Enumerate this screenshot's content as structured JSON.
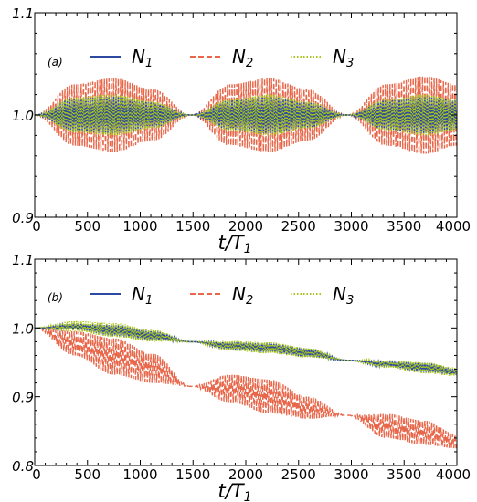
{
  "chart_data": [
    {
      "type": "line",
      "panel_label": "(a)",
      "xlabel": "t/T",
      "xlabel_sub": "1",
      "xlim": [
        0,
        4000
      ],
      "ylim": [
        0.9,
        1.1
      ],
      "x_ticks": [
        0,
        500,
        1000,
        1500,
        2000,
        2500,
        3000,
        3500,
        4000
      ],
      "y_ticks": [
        0.9,
        1.0,
        1.1
      ],
      "y_tick_labels": [
        "0.9",
        "1.0",
        "1.1"
      ],
      "legend_placement": "top",
      "series": [
        {
          "name": "N",
          "sub": "1",
          "style": "solid",
          "color": "#2b4aa0",
          "x": [
            0,
            375,
            750,
            1125,
            1480,
            1850,
            2220,
            2590,
            2960,
            3330,
            3700,
            4000
          ],
          "envelope_upper": [
            1.0,
            1.016,
            1.018,
            1.012,
            1.0,
            1.014,
            1.018,
            1.012,
            1.0,
            1.014,
            1.018,
            1.014
          ],
          "envelope_lower": [
            1.0,
            0.984,
            0.982,
            0.988,
            1.0,
            0.986,
            0.982,
            0.988,
            1.0,
            0.986,
            0.982,
            0.986
          ]
        },
        {
          "name": "N",
          "sub": "2",
          "style": "dashed",
          "color": "#e8674a",
          "x": [
            0,
            375,
            750,
            1125,
            1480,
            1850,
            2220,
            2590,
            2960,
            3330,
            3700,
            4000
          ],
          "envelope_upper": [
            1.0,
            1.03,
            1.036,
            1.025,
            1.0,
            1.03,
            1.036,
            1.025,
            1.0,
            1.03,
            1.038,
            1.03
          ],
          "envelope_lower": [
            1.0,
            0.97,
            0.964,
            0.975,
            1.0,
            0.97,
            0.964,
            0.975,
            1.0,
            0.97,
            0.962,
            0.97
          ]
        },
        {
          "name": "N",
          "sub": "3",
          "style": "dotted",
          "color": "#a8c41c",
          "x": [
            0,
            375,
            750,
            1125,
            1480,
            1850,
            2220,
            2590,
            2960,
            3330,
            3700,
            4000
          ],
          "envelope_upper": [
            1.0,
            1.017,
            1.02,
            1.013,
            1.0,
            1.015,
            1.02,
            1.013,
            1.0,
            1.015,
            1.02,
            1.015
          ],
          "envelope_lower": [
            1.0,
            0.983,
            0.98,
            0.987,
            1.0,
            0.985,
            0.98,
            0.987,
            1.0,
            0.985,
            0.98,
            0.985
          ]
        }
      ]
    },
    {
      "type": "line",
      "panel_label": "(b)",
      "xlabel": "t/T",
      "xlabel_sub": "1",
      "xlim": [
        0,
        4000
      ],
      "ylim": [
        0.8,
        1.1
      ],
      "x_ticks": [
        0,
        500,
        1000,
        1500,
        2000,
        2500,
        3000,
        3500,
        4000
      ],
      "y_ticks": [
        0.8,
        0.9,
        1.0,
        1.1
      ],
      "y_tick_labels": [
        "0.8",
        "0.9",
        "1.0",
        "1.1"
      ],
      "legend_placement": "top",
      "series": [
        {
          "name": "N",
          "sub": "1",
          "style": "solid",
          "color": "#2b4aa0",
          "x": [
            0,
            375,
            750,
            1125,
            1480,
            1850,
            2220,
            2590,
            2960,
            3330,
            3700,
            4000
          ],
          "envelope_upper": [
            1.0,
            1.006,
            1.004,
            0.995,
            0.98,
            0.979,
            0.977,
            0.97,
            0.953,
            0.951,
            0.949,
            0.94
          ],
          "envelope_lower": [
            1.0,
            0.998,
            0.989,
            0.982,
            0.98,
            0.969,
            0.965,
            0.958,
            0.953,
            0.944,
            0.936,
            0.932
          ]
        },
        {
          "name": "N",
          "sub": "2",
          "style": "dashed",
          "color": "#e8674a",
          "x": [
            0,
            375,
            750,
            1125,
            1480,
            1850,
            2220,
            2590,
            2960,
            3330,
            3700,
            4000
          ],
          "envelope_upper": [
            1.0,
            0.995,
            0.985,
            0.962,
            0.915,
            0.932,
            0.925,
            0.9,
            0.873,
            0.875,
            0.865,
            0.845
          ],
          "envelope_lower": [
            1.0,
            0.96,
            0.932,
            0.92,
            0.915,
            0.892,
            0.876,
            0.868,
            0.873,
            0.84,
            0.83,
            0.825
          ]
        },
        {
          "name": "N",
          "sub": "3",
          "style": "dotted",
          "color": "#a8c41c",
          "x": [
            0,
            375,
            750,
            1125,
            1480,
            1850,
            2220,
            2590,
            2960,
            3330,
            3700,
            4000
          ],
          "envelope_upper": [
            1.0,
            1.01,
            1.007,
            0.997,
            0.98,
            0.981,
            0.979,
            0.971,
            0.953,
            0.953,
            0.95,
            0.942
          ],
          "envelope_lower": [
            1.0,
            0.995,
            0.987,
            0.98,
            0.98,
            0.967,
            0.963,
            0.957,
            0.953,
            0.942,
            0.934,
            0.93
          ]
        }
      ]
    }
  ]
}
